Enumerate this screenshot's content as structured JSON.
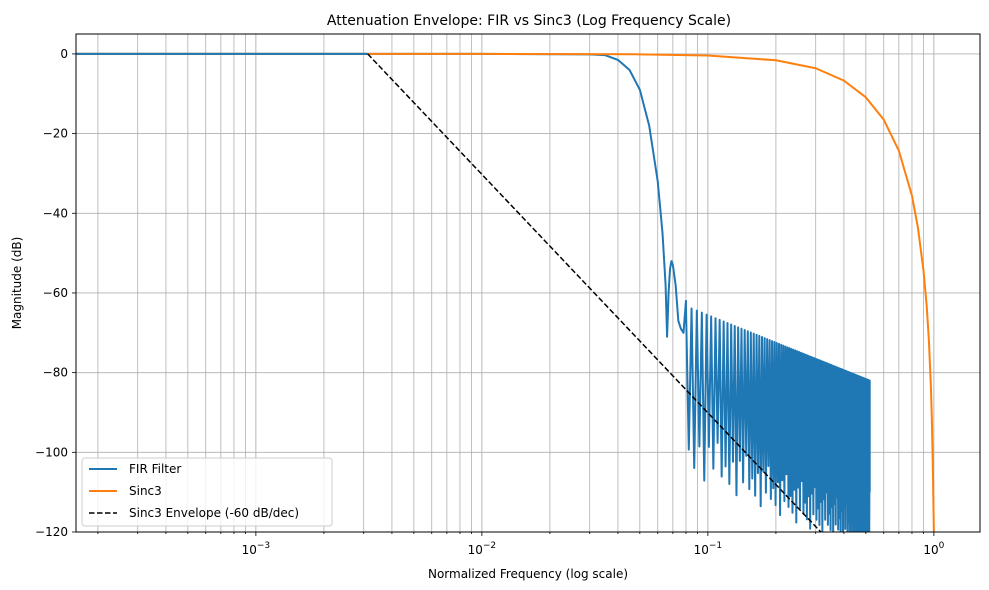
{
  "chart_data": {
    "type": "line",
    "title": "Attenuation Envelope: FIR vs Sinc3 (Log Frequency Scale)",
    "xlabel": "Normalized Frequency (log scale)",
    "ylabel": "Magnitude (dB)",
    "xscale": "log",
    "xlim": [
      0.00016,
      1.6
    ],
    "ylim": [
      -120,
      5
    ],
    "x_ticks": [
      {
        "value": 0.001,
        "base": "10",
        "exp": "−3"
      },
      {
        "value": 0.01,
        "base": "10",
        "exp": "−2"
      },
      {
        "value": 0.1,
        "base": "10",
        "exp": "−1"
      },
      {
        "value": 1,
        "base": "10",
        "exp": "0"
      }
    ],
    "y_ticks": [
      0,
      -20,
      -40,
      -60,
      -80,
      -100,
      -120
    ],
    "y_tick_labels": [
      "0",
      "−20",
      "−40",
      "−60",
      "−80",
      "−100",
      "−120"
    ],
    "grid": true,
    "legend_position": "lower-left",
    "series": [
      {
        "name": "FIR Filter",
        "color": "#1f77b4",
        "description_shape": "passband 0 dB up to ~0.035, steep rolloff to ~-71 dB at 0.066, sidelobe ~-52 dB at 0.07, then ringing stopband between ~-62/-82 dB peaks and -100/-120 dB nulls until 0.52",
        "x": [
          0.00016,
          0.003,
          0.01,
          0.03,
          0.035,
          0.04,
          0.045,
          0.05,
          0.055,
          0.06,
          0.063,
          0.065,
          0.066,
          0.067,
          0.068,
          0.069,
          0.07,
          0.072,
          0.074,
          0.076,
          0.078,
          0.08,
          0.09,
          0.1,
          0.15,
          0.2,
          0.3,
          0.4,
          0.5,
          0.52
        ],
        "y": [
          0,
          0,
          0,
          -0.1,
          -0.3,
          -1.5,
          -4,
          -9,
          -18,
          -32,
          -45,
          -58,
          -71,
          -60,
          -54,
          -52,
          -53,
          -58,
          -67,
          -69,
          -70,
          -62,
          -63,
          -64,
          -68,
          -72,
          -77,
          -80,
          -82,
          -82
        ],
        "stopband_peaks": {
          "x_start": 0.07,
          "x_end": 0.52,
          "y_start": -62,
          "y_end": -82
        },
        "stopband_nulls": {
          "x_start": 0.08,
          "x_end": 0.52,
          "y_start": -99,
          "y_end": -120
        },
        "stopband_end_x": 0.52,
        "stopband_end_y": -110
      },
      {
        "name": "Sinc3",
        "color": "#ff7f0e",
        "x": [
          0.003,
          0.01,
          0.03,
          0.05,
          0.1,
          0.2,
          0.3,
          0.4,
          0.5,
          0.6,
          0.7,
          0.8,
          0.85,
          0.9,
          0.93,
          0.95,
          0.97,
          0.98,
          0.99,
          1.0
        ],
        "y": [
          0,
          0,
          -0.05,
          -0.1,
          -0.4,
          -1.6,
          -3.6,
          -6.7,
          -10.9,
          -16.5,
          -24.3,
          -35.6,
          -43.6,
          -54.5,
          -63.4,
          -71.6,
          -83.4,
          -92.0,
          -104.2,
          -120
        ]
      },
      {
        "name": "Sinc3 Envelope (-60 dB/dec)",
        "color": "#000000",
        "dashed": true,
        "x": [
          0.003125,
          0.3162
        ],
        "y": [
          0,
          -120
        ]
      }
    ]
  }
}
